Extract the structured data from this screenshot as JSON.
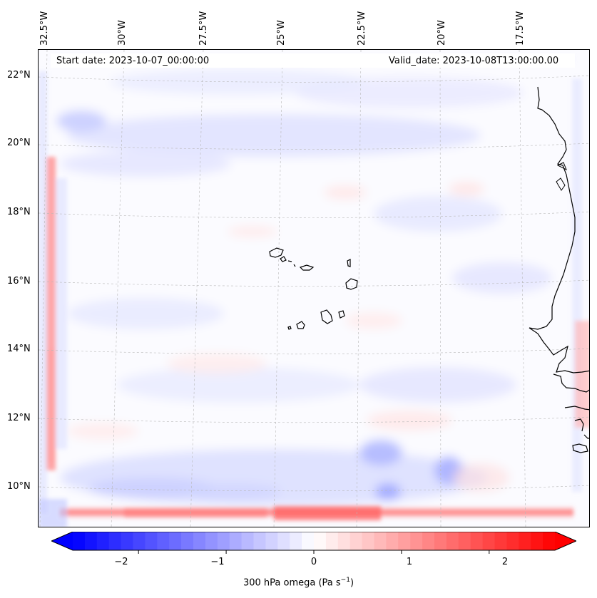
{
  "info": {
    "start_date": "Start date: 2023-10-07_00:00:00",
    "valid_date": "Valid_date: 2023-10-08T13:00:00.00"
  },
  "lon_labels": [
    "32.5°W",
    "30°W",
    "27.5°W",
    "25°W",
    "22.5°W",
    "20°W",
    "17.5°W"
  ],
  "lat_labels": [
    "22°N",
    "20°N",
    "18°N",
    "16°N",
    "14°N",
    "12°N",
    "10°N"
  ],
  "colorbar": {
    "label_main": "300 hPa omega (Pa s",
    "label_exp": "−1",
    "label_close": ")",
    "tick_labels": [
      "−2",
      "−1",
      "0",
      "1",
      "2"
    ],
    "range": [
      -2.75,
      2.75
    ],
    "negative_color": "#0000ff",
    "positive_color": "#ff0000"
  },
  "map_colors": {
    "coastline": "#000000",
    "gridline": "#b8b8b8",
    "background": "#fbfbff"
  }
}
